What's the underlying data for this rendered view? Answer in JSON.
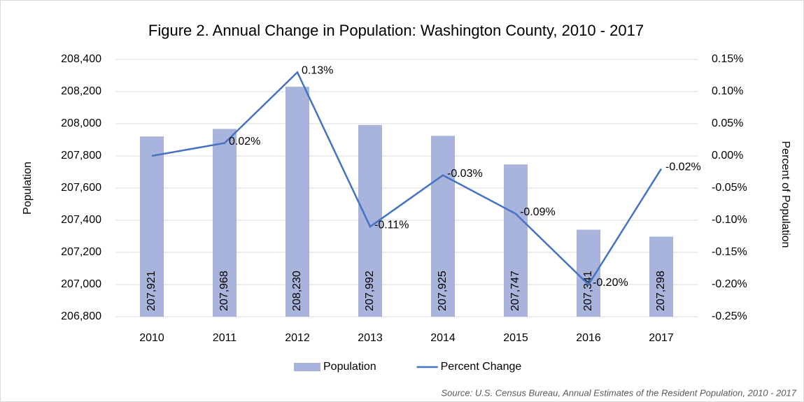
{
  "chart_data": {
    "type": "bar",
    "title": "Figure 2. Annual Change in Population: Washington County, 2010 - 2017",
    "source": "Source: U.S. Census Bureau, Annual Estimates of the Resident Population, 2010 - 2017",
    "y_label": "Population",
    "y2_label": "Percent of Population",
    "categories": [
      "2010",
      "2011",
      "2012",
      "2013",
      "2014",
      "2015",
      "2016",
      "2017"
    ],
    "series": [
      {
        "name": "Population",
        "type": "bar",
        "color": "#a9b4dc",
        "values": [
          207921,
          207968,
          208230,
          207992,
          207925,
          207747,
          207341,
          207298
        ],
        "value_labels": [
          "207,921",
          "207,968",
          "208,230",
          "207,992",
          "207,925",
          "207,747",
          "207,341",
          "207,298"
        ]
      },
      {
        "name": "Percent Change",
        "type": "line",
        "axis": "y2",
        "color": "#4472c4",
        "values": [
          0.0,
          0.02,
          0.13,
          -0.11,
          -0.03,
          -0.09,
          -0.2,
          -0.02
        ],
        "value_labels": [
          null,
          "0.02%",
          "0.13%",
          "-0.11%",
          "-0.03%",
          "-0.09%",
          "-0.20%",
          "-0.02%"
        ]
      }
    ],
    "ylim": [
      206800,
      208400
    ],
    "yticks": [
      {
        "value": 206800,
        "label": "206,800"
      },
      {
        "value": 207000,
        "label": "207,000"
      },
      {
        "value": 207200,
        "label": "207,200"
      },
      {
        "value": 207400,
        "label": "207,400"
      },
      {
        "value": 207600,
        "label": "207,600"
      },
      {
        "value": 207800,
        "label": "207,800"
      },
      {
        "value": 208000,
        "label": "208,000"
      },
      {
        "value": 208200,
        "label": "208,200"
      },
      {
        "value": 208400,
        "label": "208,400"
      }
    ],
    "y2lim": [
      -0.25,
      0.15
    ],
    "y2ticks": [
      {
        "value": -0.25,
        "label": "-0.25%"
      },
      {
        "value": -0.2,
        "label": "-0.20%"
      },
      {
        "value": -0.15,
        "label": "-0.15%"
      },
      {
        "value": -0.1,
        "label": "-0.10%"
      },
      {
        "value": -0.05,
        "label": "-0.05%"
      },
      {
        "value": 0.0,
        "label": "0.00%"
      },
      {
        "value": 0.05,
        "label": "0.05%"
      },
      {
        "value": 0.1,
        "label": "0.10%"
      },
      {
        "value": 0.15,
        "label": "0.15%"
      }
    ],
    "grid": true,
    "legend": "bottom"
  }
}
